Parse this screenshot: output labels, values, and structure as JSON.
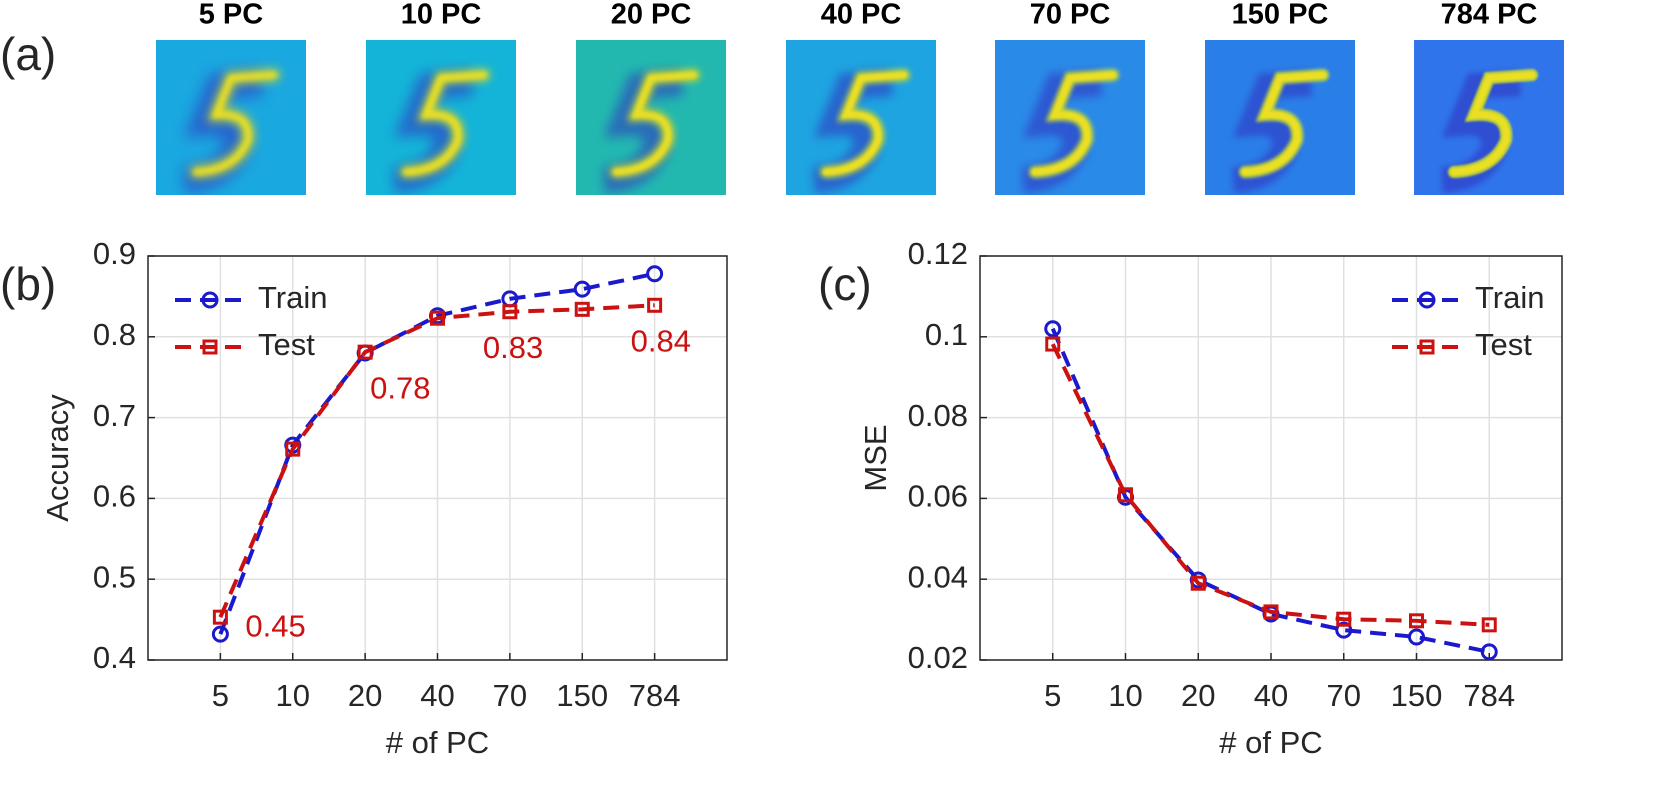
{
  "images": {
    "panel_label": "(a)",
    "titles": [
      "5 PC",
      "10 PC",
      "20 PC",
      "40 PC",
      "70 PC",
      "150 PC",
      "784 PC"
    ]
  },
  "chart_data": [
    {
      "type": "line",
      "panel_label": "(b)",
      "xlabel": "# of PC",
      "ylabel": "Accuracy",
      "categories": [
        "5",
        "10",
        "20",
        "40",
        "70",
        "150",
        "784"
      ],
      "ylim": [
        0.4,
        0.9
      ],
      "yticks": [
        0.4,
        0.5,
        0.6,
        0.7,
        0.8,
        0.9
      ],
      "grid": true,
      "legend": "upper-left",
      "series": [
        {
          "name": "Train",
          "color": "#1a1acc",
          "marker": "circle",
          "values": [
            0.432,
            0.666,
            0.78,
            0.826,
            0.847,
            0.859,
            0.878
          ]
        },
        {
          "name": "Test",
          "color": "#cc1111",
          "marker": "square",
          "values": [
            0.453,
            0.661,
            0.781,
            0.823,
            0.831,
            0.834,
            0.839
          ],
          "value_labels": [
            "0.45",
            null,
            "0.78",
            null,
            "0.83",
            null,
            "0.84"
          ]
        }
      ]
    },
    {
      "type": "line",
      "panel_label": "(c)",
      "xlabel": "# of PC",
      "ylabel": "MSE",
      "categories": [
        "5",
        "10",
        "20",
        "40",
        "70",
        "150",
        "784"
      ],
      "ylim": [
        0.02,
        0.12
      ],
      "yticks": [
        0.02,
        0.04,
        0.06,
        0.08,
        0.1,
        0.12
      ],
      "grid": true,
      "legend": "upper-right",
      "series": [
        {
          "name": "Train",
          "color": "#1a1acc",
          "marker": "circle",
          "values": [
            0.102,
            0.0603,
            0.0398,
            0.0314,
            0.0274,
            0.0257,
            0.022
          ]
        },
        {
          "name": "Test",
          "color": "#cc1111",
          "marker": "square",
          "values": [
            0.0982,
            0.0609,
            0.039,
            0.0319,
            0.0301,
            0.0297,
            0.0287
          ]
        }
      ]
    }
  ]
}
